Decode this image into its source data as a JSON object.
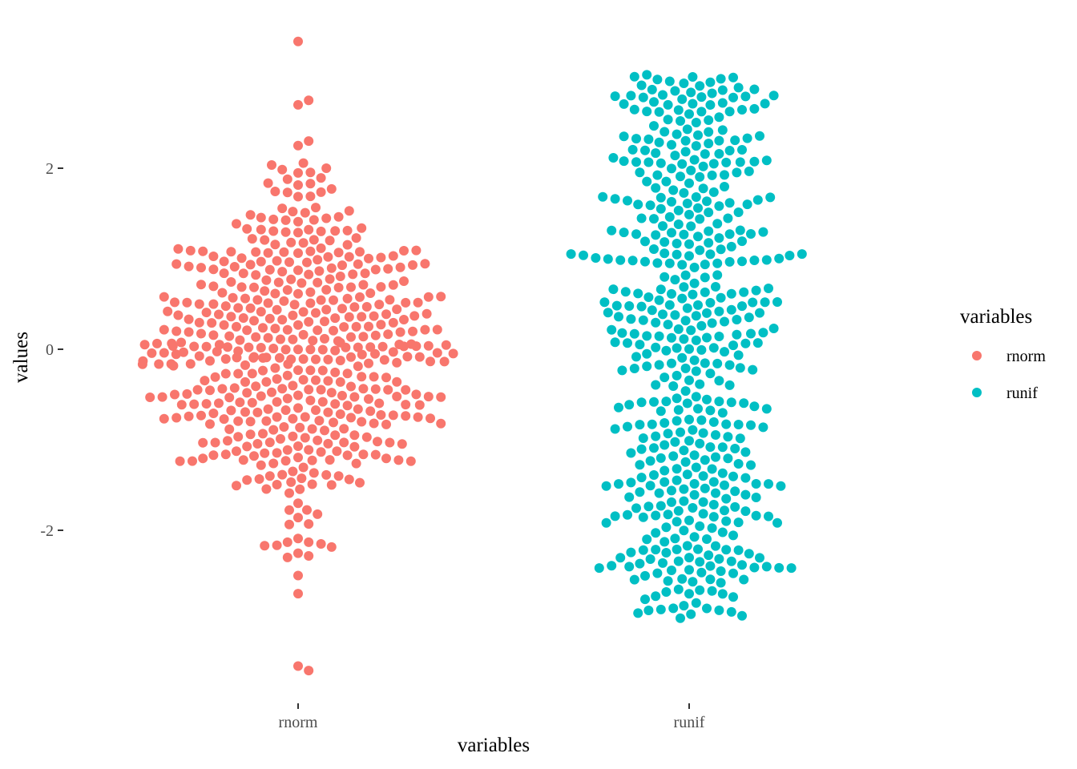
{
  "chart_data": {
    "type": "scatter",
    "subtype": "beeswarm",
    "xlabel": "variables",
    "ylabel": "values",
    "categories": [
      "rnorm",
      "runif"
    ],
    "ylim": [
      -3.85,
      3.65
    ],
    "yticks": [
      -2,
      0,
      2
    ],
    "ytick_labels": [
      "-2",
      "0",
      "2"
    ],
    "grid": false,
    "legend": {
      "title": "variables",
      "position": "right",
      "entries": [
        {
          "label": "rnorm",
          "color": "#F8766D"
        },
        {
          "label": "runif",
          "color": "#00BFC4"
        }
      ]
    },
    "series": [
      {
        "name": "rnorm",
        "color": "#F8766D",
        "distribution": "normal",
        "n": 500,
        "values_range": [
          -3.55,
          3.4
        ],
        "notable_values": [
          3.4,
          2.75,
          2.7,
          2.3,
          2.25,
          2.0,
          -2.15,
          -2.3,
          -2.5,
          -2.7,
          -3.5,
          -3.55
        ]
      },
      {
        "name": "runif",
        "color": "#00BFC4",
        "distribution": "uniform",
        "n": 500,
        "values_range": [
          -3.0,
          3.05
        ]
      }
    ]
  }
}
